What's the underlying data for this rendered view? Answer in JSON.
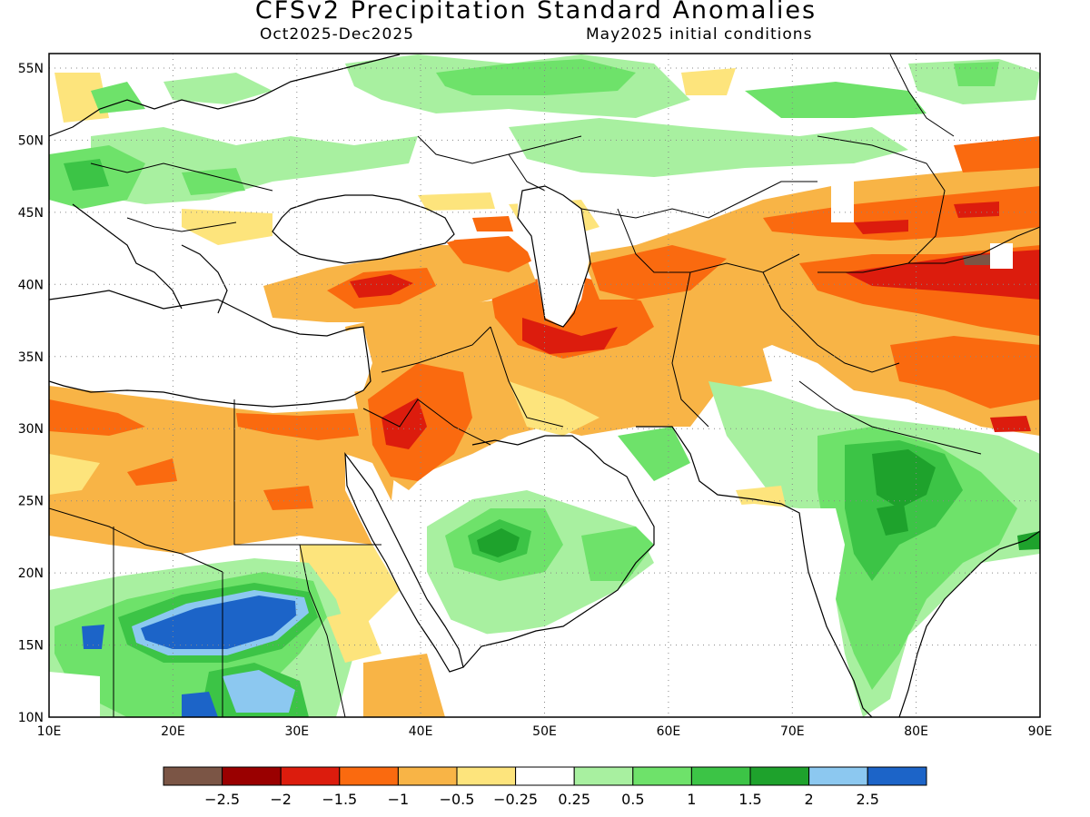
{
  "title": "CFSv2 Precipitation Standard Anomalies",
  "subtitle_left": "Oct2025-Dec2025",
  "subtitle_right": "May2025 initial conditions",
  "axes": {
    "lon_labels": [
      "10E",
      "20E",
      "30E",
      "40E",
      "50E",
      "60E",
      "70E",
      "80E",
      "90E"
    ],
    "lat_labels": [
      "55N",
      "50N",
      "45N",
      "40N",
      "35N",
      "30N",
      "25N",
      "20N",
      "15N",
      "10N"
    ],
    "lon_range": [
      10,
      90
    ],
    "lat_range": [
      10,
      56
    ],
    "grid": "dotted"
  },
  "colorbar": {
    "colors": [
      "#7b5545",
      "#9a0000",
      "#dc1c0d",
      "#fa6a0f",
      "#f8b446",
      "#fde47c",
      "#ffffff",
      "#a8f0a0",
      "#6ee26a",
      "#3cc446",
      "#1ea22c",
      "#8cc8f0",
      "#1c64c8"
    ],
    "labels": [
      "−2.5",
      "−2",
      "−1.5",
      "−1",
      "−0.5",
      "−0.25",
      "0.25",
      "0.5",
      "1",
      "1.5",
      "2",
      "2.5"
    ]
  },
  "anomaly_regions": [
    {
      "name": "North Africa dry",
      "level": -1,
      "color": "#f8b446"
    },
    {
      "name": "Egypt/Libya dry core",
      "level": -1.5,
      "color": "#fa6a0f"
    },
    {
      "name": "Turkey dry core",
      "level": -2,
      "color": "#dc1c0d"
    },
    {
      "name": "Northern Arabia dry core",
      "level": -2,
      "color": "#dc1c0d"
    },
    {
      "name": "Iran dry core",
      "level": -2,
      "color": "#dc1c0d"
    },
    {
      "name": "Central Asia dry band",
      "level": -1.5,
      "color": "#fa6a0f"
    },
    {
      "name": "Western China dry core",
      "level": -2.5,
      "color": "#7b5545"
    },
    {
      "name": "Sahel wet core",
      "level": 2.5,
      "color": "#1c64c8"
    },
    {
      "name": "Southern Arabia wet",
      "level": 1.5,
      "color": "#3cc446"
    },
    {
      "name": "India wet",
      "level": 1.5,
      "color": "#3cc446"
    },
    {
      "name": "Europe/Russia wet",
      "level": 0.5,
      "color": "#6ee26a"
    }
  ]
}
